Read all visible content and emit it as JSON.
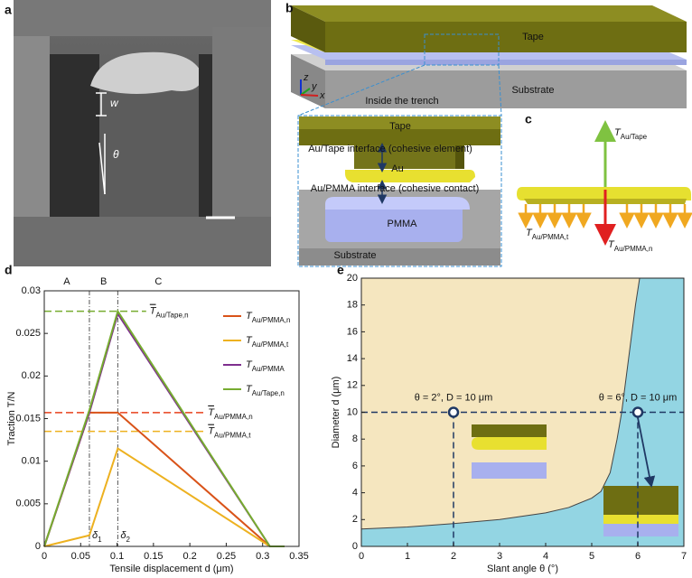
{
  "panel_labels": [
    "a",
    "b",
    "c",
    "d",
    "e"
  ],
  "panel_a": {
    "width": "w",
    "angle": "θ"
  },
  "panel_b": {
    "tape": "Tape",
    "substrate": "Substrate",
    "axes": [
      "z",
      "y",
      "x"
    ],
    "inset_title": "Inside the trench",
    "inset": {
      "tape": "Tape",
      "au_tape": "Au/Tape interface (cohesive element)",
      "au": "Au",
      "au_pmma": "Au/PMMA interface (cohesive contact)",
      "pmma": "PMMA",
      "substrate": "Substrate"
    }
  },
  "panel_c": {
    "up": [
      "T",
      "Au/Tape"
    ],
    "tangential": [
      "T",
      "Au/PMMA,t"
    ],
    "normal": [
      "T",
      "Au/PMMA,n"
    ]
  },
  "chart_data": [
    {
      "type": "line",
      "xlabel": "Tensile displacement d (μm)",
      "ylabel": "Traction T/N",
      "xlim": [
        0,
        0.35
      ],
      "ylim": [
        0,
        0.03
      ],
      "xticks": [
        0,
        0.05,
        0.1,
        0.15,
        0.2,
        0.25,
        0.3,
        0.35
      ],
      "yticks": [
        0,
        0.005,
        0.01,
        0.015,
        0.02,
        0.025,
        0.03
      ],
      "grid": false,
      "legend": "upper right",
      "series": [
        {
          "name": [
            "T",
            "Au/PMMA,n"
          ],
          "color": "#d95319",
          "x": [
            0,
            0.062,
            0.101,
            0.31,
            0.33
          ],
          "values": [
            0,
            0.0157,
            0.0157,
            0,
            0
          ]
        },
        {
          "name": [
            "T",
            "Au/PMMA,t"
          ],
          "color": "#edb120",
          "x": [
            0,
            0.062,
            0.101,
            0.31,
            0.33
          ],
          "values": [
            0,
            0.0013,
            0.0115,
            0,
            0
          ]
        },
        {
          "name": [
            "T",
            "Au/PMMA"
          ],
          "color": "#7e2f8e",
          "x": [
            0,
            0.062,
            0.101,
            0.31,
            0.33
          ],
          "values": [
            0,
            0.0157,
            0.0273,
            0,
            0
          ]
        },
        {
          "name": [
            "T",
            "Au/Tape,n"
          ],
          "color": "#77ac30",
          "x": [
            0,
            0.062,
            0.101,
            0.31,
            0.33
          ],
          "values": [
            0,
            0.016,
            0.0276,
            0,
            0
          ]
        }
      ],
      "reference_lines": [
        {
          "value": 0.0276,
          "x_end": 0.14,
          "color": "#77ac30",
          "label": [
            "T",
            "Au/Tape,n"
          ]
        },
        {
          "value": 0.0157,
          "x_end": 0.22,
          "color": "#e8401c",
          "label": [
            "T",
            "Au/PMMA,n"
          ]
        },
        {
          "value": 0.0135,
          "x_end": 0.22,
          "color": "#edb120",
          "label": [
            "T",
            "Au/PMMA,t"
          ]
        }
      ],
      "vertical_lines": [
        {
          "value": 0.062,
          "label": [
            "δ",
            "1"
          ]
        },
        {
          "value": 0.101,
          "label": [
            "δ",
            "2"
          ]
        }
      ],
      "region_labels": [
        "A",
        "B",
        "C"
      ]
    },
    {
      "type": "region",
      "xlabel": "Slant angle θ (°)",
      "ylabel": "Diameter d (μm)",
      "xlim": [
        0,
        7
      ],
      "ylim": [
        0,
        20
      ],
      "xticks": [
        0,
        1,
        2,
        3,
        4,
        5,
        6,
        7
      ],
      "yticks": [
        0,
        2,
        4,
        6,
        8,
        10,
        12,
        14,
        16,
        18,
        20
      ],
      "grid": false,
      "fill_above": "#f5e6bf",
      "fill_below": "#93d5e3",
      "line_color": "#444444",
      "boundary": {
        "x": [
          0,
          1,
          2,
          3,
          4,
          4.5,
          5,
          5.2,
          5.4,
          5.55,
          5.65,
          5.8,
          5.95,
          6.04
        ],
        "values": [
          1.3,
          1.45,
          1.7,
          2.0,
          2.5,
          2.9,
          3.6,
          4.1,
          5.5,
          8,
          10,
          14,
          18,
          20
        ]
      },
      "markers": {
        "color": "#1f3864",
        "x": [
          2,
          6
        ],
        "values": [
          10,
          10
        ],
        "labels": [
          "θ = 2°, D = 10 μm",
          "θ = 6°, D = 10 μm"
        ]
      }
    }
  ]
}
